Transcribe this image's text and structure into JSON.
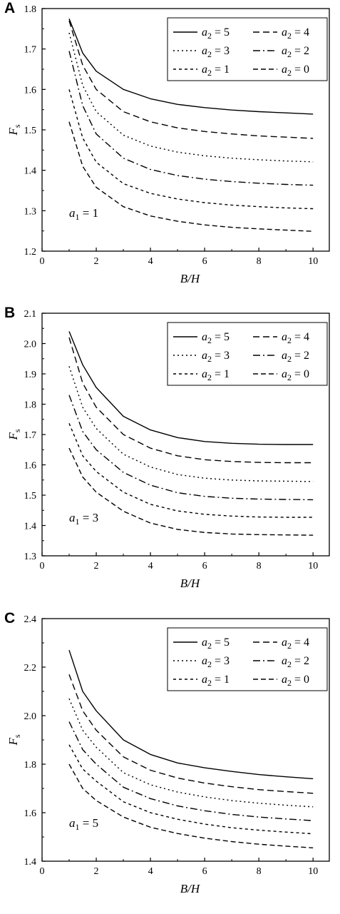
{
  "panels": [
    {
      "letter": "A",
      "annotation": {
        "var": "a",
        "sub": "1",
        "rest": " = 1"
      },
      "ylabel": {
        "main": "F",
        "sub": "s"
      },
      "xlabel": "B/H"
    },
    {
      "letter": "B",
      "annotation": {
        "var": "a",
        "sub": "1",
        "rest": " = 3"
      },
      "ylabel": {
        "main": "F",
        "sub": "s"
      },
      "xlabel": "B/H"
    },
    {
      "letter": "C",
      "annotation": {
        "var": "a",
        "sub": "1",
        "rest": " = 5"
      },
      "ylabel": {
        "main": "F",
        "sub": "s"
      },
      "xlabel": "B/H"
    }
  ],
  "chart_data": [
    {
      "type": "line",
      "panel": "A",
      "xlabel": "B/H",
      "ylabel": "Fs",
      "xlim": [
        0,
        10.6
      ],
      "ylim": [
        1.2,
        1.8
      ],
      "xticks": [
        "0",
        "2",
        "4",
        "6",
        "8",
        "10"
      ],
      "yticks": [
        "1.2",
        "1.3",
        "1.4",
        "1.5",
        "1.6",
        "1.7",
        "1.8"
      ],
      "annotation": "a1 = 1",
      "legend_position": "top-right",
      "x": [
        1,
        1.5,
        2,
        3,
        4,
        5,
        6,
        7,
        8,
        9,
        10
      ],
      "series": [
        {
          "name": "a2 = 5",
          "style": "solid",
          "values": [
            1.775,
            1.69,
            1.645,
            1.6,
            1.577,
            1.563,
            1.555,
            1.549,
            1.545,
            1.542,
            1.539
          ]
        },
        {
          "name": "a2 = 4",
          "style": "dash",
          "values": [
            1.77,
            1.66,
            1.6,
            1.545,
            1.52,
            1.505,
            1.496,
            1.49,
            1.485,
            1.482,
            1.479
          ]
        },
        {
          "name": "a2 = 3",
          "style": "dot",
          "values": [
            1.74,
            1.61,
            1.545,
            1.487,
            1.46,
            1.445,
            1.436,
            1.43,
            1.426,
            1.423,
            1.421
          ]
        },
        {
          "name": "a2 = 2",
          "style": "dashdot",
          "values": [
            1.695,
            1.56,
            1.49,
            1.43,
            1.402,
            1.387,
            1.378,
            1.372,
            1.368,
            1.365,
            1.363
          ]
        },
        {
          "name": "a2 = 1",
          "style": "shortdash",
          "values": [
            1.6,
            1.48,
            1.42,
            1.367,
            1.343,
            1.329,
            1.32,
            1.314,
            1.31,
            1.307,
            1.305
          ]
        },
        {
          "name": "a2 = 0",
          "style": "longdash",
          "values": [
            1.52,
            1.41,
            1.358,
            1.31,
            1.287,
            1.274,
            1.265,
            1.259,
            1.255,
            1.252,
            1.249
          ]
        }
      ]
    },
    {
      "type": "line",
      "panel": "B",
      "xlabel": "B/H",
      "ylabel": "Fs",
      "xlim": [
        0,
        10.6
      ],
      "ylim": [
        1.3,
        2.1
      ],
      "xticks": [
        "0",
        "2",
        "4",
        "6",
        "8",
        "10"
      ],
      "yticks": [
        "1.3",
        "1.4",
        "1.5",
        "1.6",
        "1.7",
        "1.8",
        "1.9",
        "2.0",
        "2.1"
      ],
      "annotation": "a1 = 3",
      "legend_position": "top-right",
      "x": [
        1,
        1.5,
        2,
        3,
        4,
        5,
        6,
        7,
        8,
        9,
        10
      ],
      "series": [
        {
          "name": "a2 = 5",
          "style": "solid",
          "values": [
            2.04,
            1.93,
            1.855,
            1.76,
            1.715,
            1.69,
            1.677,
            1.671,
            1.668,
            1.667,
            1.667
          ]
        },
        {
          "name": "a2 = 4",
          "style": "dash",
          "values": [
            2.02,
            1.87,
            1.79,
            1.7,
            1.655,
            1.63,
            1.617,
            1.611,
            1.608,
            1.607,
            1.607
          ]
        },
        {
          "name": "a2 = 3",
          "style": "dot",
          "values": [
            1.925,
            1.79,
            1.72,
            1.635,
            1.593,
            1.568,
            1.556,
            1.55,
            1.547,
            1.546,
            1.545
          ]
        },
        {
          "name": "a2 = 2",
          "style": "dashdot",
          "values": [
            1.83,
            1.71,
            1.65,
            1.575,
            1.533,
            1.508,
            1.496,
            1.49,
            1.487,
            1.486,
            1.485
          ]
        },
        {
          "name": "a2 = 1",
          "style": "shortdash",
          "values": [
            1.737,
            1.63,
            1.578,
            1.51,
            1.47,
            1.448,
            1.437,
            1.431,
            1.428,
            1.427,
            1.427
          ]
        },
        {
          "name": "a2 = 0",
          "style": "longdash",
          "values": [
            1.655,
            1.56,
            1.51,
            1.447,
            1.408,
            1.387,
            1.377,
            1.372,
            1.37,
            1.369,
            1.368
          ]
        }
      ]
    },
    {
      "type": "line",
      "panel": "C",
      "xlabel": "B/H",
      "ylabel": "Fs",
      "xlim": [
        0,
        10.6
      ],
      "ylim": [
        1.4,
        2.4
      ],
      "xticks": [
        "0",
        "2",
        "4",
        "6",
        "8",
        "10"
      ],
      "yticks": [
        "1.4",
        "1.6",
        "1.8",
        "2.0",
        "2.2",
        "2.4"
      ],
      "annotation": "a1 = 5",
      "legend_position": "top-right",
      "x": [
        1,
        1.5,
        2,
        3,
        4,
        5,
        6,
        7,
        8,
        9,
        10
      ],
      "series": [
        {
          "name": "a2 = 5",
          "style": "solid",
          "values": [
            2.27,
            2.1,
            2.02,
            1.9,
            1.84,
            1.805,
            1.785,
            1.77,
            1.757,
            1.748,
            1.74
          ]
        },
        {
          "name": "a2 = 4",
          "style": "dash",
          "values": [
            2.17,
            2.02,
            1.94,
            1.83,
            1.775,
            1.743,
            1.722,
            1.707,
            1.695,
            1.687,
            1.68
          ]
        },
        {
          "name": "a2 = 3",
          "style": "dot",
          "values": [
            2.07,
            1.94,
            1.87,
            1.765,
            1.715,
            1.685,
            1.665,
            1.65,
            1.639,
            1.631,
            1.624
          ]
        },
        {
          "name": "a2 = 2",
          "style": "dashdot",
          "values": [
            1.975,
            1.86,
            1.8,
            1.705,
            1.658,
            1.628,
            1.608,
            1.593,
            1.582,
            1.574,
            1.567
          ]
        },
        {
          "name": "a2 = 1",
          "style": "shortdash",
          "values": [
            1.88,
            1.78,
            1.73,
            1.645,
            1.6,
            1.573,
            1.553,
            1.538,
            1.528,
            1.52,
            1.513
          ]
        },
        {
          "name": "a2 = 0",
          "style": "longdash",
          "values": [
            1.8,
            1.7,
            1.65,
            1.582,
            1.54,
            1.514,
            1.495,
            1.481,
            1.47,
            1.462,
            1.455
          ]
        }
      ]
    }
  ]
}
